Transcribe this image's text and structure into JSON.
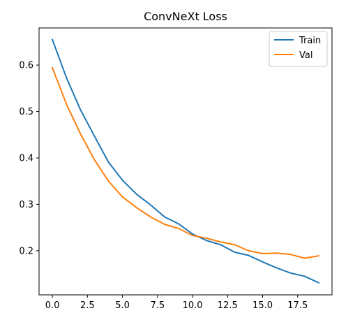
{
  "chart_data": {
    "type": "line",
    "title": "ConvNeXt Loss",
    "xlabel": "",
    "ylabel": "",
    "xlim": [
      -0.95,
      19.95
    ],
    "ylim": [
      0.105,
      0.68
    ],
    "xticks": [
      0,
      2.5,
      5,
      7.5,
      10,
      12.5,
      15,
      17.5
    ],
    "xtick_labels": [
      "0.0",
      "2.5",
      "5.0",
      "7.5",
      "10.0",
      "12.5",
      "15.0",
      "17.5"
    ],
    "yticks": [
      0.2,
      0.3,
      0.4,
      0.5,
      0.6
    ],
    "ytick_labels": [
      "0.2",
      "0.3",
      "0.4",
      "0.5",
      "0.6"
    ],
    "grid": false,
    "legend_position": "upper-right",
    "x": [
      0,
      1,
      2,
      3,
      4,
      5,
      6,
      7,
      8,
      9,
      10,
      11,
      12,
      13,
      14,
      15,
      16,
      17,
      18,
      19
    ],
    "series": [
      {
        "name": "Train",
        "color": "#1f77b4",
        "values": [
          0.655,
          0.573,
          0.504,
          0.447,
          0.391,
          0.352,
          0.322,
          0.299,
          0.273,
          0.258,
          0.236,
          0.222,
          0.213,
          0.197,
          0.19,
          0.176,
          0.163,
          0.152,
          0.145,
          0.131
        ]
      },
      {
        "name": "Val",
        "color": "#ff7f0e",
        "values": [
          0.594,
          0.516,
          0.452,
          0.396,
          0.35,
          0.316,
          0.293,
          0.273,
          0.257,
          0.248,
          0.233,
          0.227,
          0.219,
          0.213,
          0.2,
          0.194,
          0.195,
          0.192,
          0.184,
          0.189
        ]
      }
    ]
  }
}
